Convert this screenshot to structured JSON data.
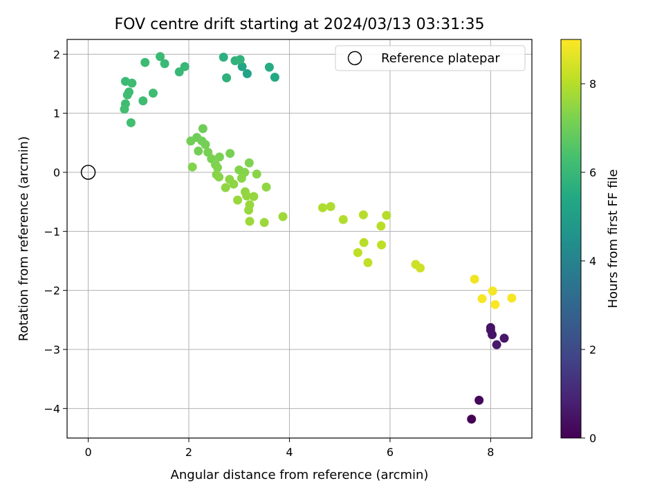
{
  "chart_data": {
    "type": "scatter",
    "title": "FOV centre drift starting at 2024/03/13 03:31:35",
    "xlabel": "Angular distance from reference (arcmin)",
    "ylabel": "Rotation from reference (arcmin)",
    "xlim": [
      -0.42,
      8.82
    ],
    "ylim": [
      -4.5,
      2.25
    ],
    "xticks": [
      "0",
      "2",
      "4",
      "6",
      "8"
    ],
    "xtick_values": [
      0,
      2,
      4,
      6,
      8
    ],
    "yticks": [
      "−4",
      "−3",
      "−2",
      "−1",
      "0",
      "1",
      "2"
    ],
    "ytick_values": [
      -4,
      -3,
      -2,
      -1,
      0,
      1,
      2
    ],
    "grid": true,
    "legend": {
      "position": "top-right",
      "entries": [
        "Reference platepar"
      ]
    },
    "reference_point": {
      "x": 0,
      "y": 0,
      "label": "Reference platepar"
    },
    "colorbar": {
      "label": "Hours from first FF file",
      "range": [
        0,
        9
      ],
      "ticks": [
        "0",
        "2",
        "4",
        "6",
        "8"
      ],
      "tick_values": [
        0,
        2,
        4,
        6,
        8
      ],
      "colormap": "viridis"
    },
    "points": [
      {
        "x": 7.62,
        "y": -4.18,
        "h": 0.0
      },
      {
        "x": 7.77,
        "y": -3.86,
        "h": 0.2
      },
      {
        "x": 8.0,
        "y": -2.63,
        "h": 0.4
      },
      {
        "x": 8.0,
        "y": -2.67,
        "h": 0.45
      },
      {
        "x": 8.03,
        "y": -2.75,
        "h": 0.5
      },
      {
        "x": 8.27,
        "y": -2.81,
        "h": 0.6
      },
      {
        "x": 8.12,
        "y": -2.92,
        "h": 0.65
      },
      {
        "x": 3.16,
        "y": 1.67,
        "h": 5.2
      },
      {
        "x": 3.06,
        "y": 1.79,
        "h": 5.3
      },
      {
        "x": 3.71,
        "y": 1.61,
        "h": 5.4
      },
      {
        "x": 3.6,
        "y": 1.78,
        "h": 5.5
      },
      {
        "x": 2.69,
        "y": 1.95,
        "h": 5.7
      },
      {
        "x": 2.75,
        "y": 1.6,
        "h": 5.75
      },
      {
        "x": 2.92,
        "y": 1.89,
        "h": 5.8
      },
      {
        "x": 3.02,
        "y": 1.91,
        "h": 5.85
      },
      {
        "x": 1.92,
        "y": 1.79,
        "h": 6.0
      },
      {
        "x": 1.81,
        "y": 1.7,
        "h": 6.0
      },
      {
        "x": 1.52,
        "y": 1.84,
        "h": 6.05
      },
      {
        "x": 1.43,
        "y": 1.96,
        "h": 6.1
      },
      {
        "x": 1.13,
        "y": 1.86,
        "h": 6.1
      },
      {
        "x": 0.74,
        "y": 1.54,
        "h": 6.1
      },
      {
        "x": 0.87,
        "y": 1.51,
        "h": 6.15
      },
      {
        "x": 0.81,
        "y": 1.36,
        "h": 6.15
      },
      {
        "x": 0.78,
        "y": 1.31,
        "h": 6.2
      },
      {
        "x": 1.29,
        "y": 1.34,
        "h": 6.2
      },
      {
        "x": 1.09,
        "y": 1.21,
        "h": 6.2
      },
      {
        "x": 0.74,
        "y": 1.16,
        "h": 6.2
      },
      {
        "x": 0.72,
        "y": 1.07,
        "h": 6.25
      },
      {
        "x": 0.85,
        "y": 0.84,
        "h": 6.25
      },
      {
        "x": 2.28,
        "y": 0.74,
        "h": 7.0
      },
      {
        "x": 2.16,
        "y": 0.59,
        "h": 7.0
      },
      {
        "x": 2.26,
        "y": 0.53,
        "h": 7.05
      },
      {
        "x": 2.04,
        "y": 0.53,
        "h": 7.05
      },
      {
        "x": 2.33,
        "y": 0.47,
        "h": 7.1
      },
      {
        "x": 2.19,
        "y": 0.36,
        "h": 7.1
      },
      {
        "x": 2.38,
        "y": 0.34,
        "h": 7.15
      },
      {
        "x": 2.82,
        "y": 0.32,
        "h": 7.15
      },
      {
        "x": 2.61,
        "y": 0.26,
        "h": 7.2
      },
      {
        "x": 2.45,
        "y": 0.23,
        "h": 7.2
      },
      {
        "x": 3.2,
        "y": 0.16,
        "h": 7.25
      },
      {
        "x": 2.53,
        "y": 0.13,
        "h": 7.25
      },
      {
        "x": 2.57,
        "y": 0.08,
        "h": 7.3
      },
      {
        "x": 2.07,
        "y": 0.09,
        "h": 7.3
      },
      {
        "x": 3.0,
        "y": 0.04,
        "h": 7.3
      },
      {
        "x": 3.11,
        "y": 0.0,
        "h": 7.35
      },
      {
        "x": 2.55,
        "y": -0.04,
        "h": 7.35
      },
      {
        "x": 3.35,
        "y": -0.03,
        "h": 7.4
      },
      {
        "x": 2.6,
        "y": -0.08,
        "h": 7.4
      },
      {
        "x": 3.05,
        "y": -0.1,
        "h": 7.4
      },
      {
        "x": 2.81,
        "y": -0.12,
        "h": 7.45
      },
      {
        "x": 2.89,
        "y": -0.2,
        "h": 7.45
      },
      {
        "x": 2.73,
        "y": -0.26,
        "h": 7.5
      },
      {
        "x": 3.54,
        "y": -0.25,
        "h": 7.5
      },
      {
        "x": 3.12,
        "y": -0.33,
        "h": 7.5
      },
      {
        "x": 3.15,
        "y": -0.4,
        "h": 7.55
      },
      {
        "x": 3.29,
        "y": -0.41,
        "h": 7.55
      },
      {
        "x": 2.97,
        "y": -0.47,
        "h": 7.6
      },
      {
        "x": 3.21,
        "y": -0.55,
        "h": 7.6
      },
      {
        "x": 3.19,
        "y": -0.64,
        "h": 7.6
      },
      {
        "x": 3.21,
        "y": -0.83,
        "h": 7.65
      },
      {
        "x": 3.5,
        "y": -0.85,
        "h": 7.65
      },
      {
        "x": 3.87,
        "y": -0.75,
        "h": 7.7
      },
      {
        "x": 4.66,
        "y": -0.6,
        "h": 7.9
      },
      {
        "x": 4.82,
        "y": -0.58,
        "h": 7.9
      },
      {
        "x": 5.07,
        "y": -0.8,
        "h": 7.95
      },
      {
        "x": 5.47,
        "y": -0.72,
        "h": 8.0
      },
      {
        "x": 5.93,
        "y": -0.73,
        "h": 8.0
      },
      {
        "x": 5.82,
        "y": -0.91,
        "h": 8.05
      },
      {
        "x": 5.48,
        "y": -1.19,
        "h": 8.05
      },
      {
        "x": 5.83,
        "y": -1.23,
        "h": 8.1
      },
      {
        "x": 5.36,
        "y": -1.36,
        "h": 8.1
      },
      {
        "x": 5.56,
        "y": -1.53,
        "h": 8.15
      },
      {
        "x": 6.51,
        "y": -1.56,
        "h": 8.3
      },
      {
        "x": 6.6,
        "y": -1.62,
        "h": 8.35
      },
      {
        "x": 7.68,
        "y": -1.81,
        "h": 8.8
      },
      {
        "x": 8.04,
        "y": -2.01,
        "h": 8.85
      },
      {
        "x": 7.83,
        "y": -2.14,
        "h": 8.9
      },
      {
        "x": 8.42,
        "y": -2.13,
        "h": 8.9
      },
      {
        "x": 8.09,
        "y": -2.24,
        "h": 8.95
      }
    ]
  }
}
